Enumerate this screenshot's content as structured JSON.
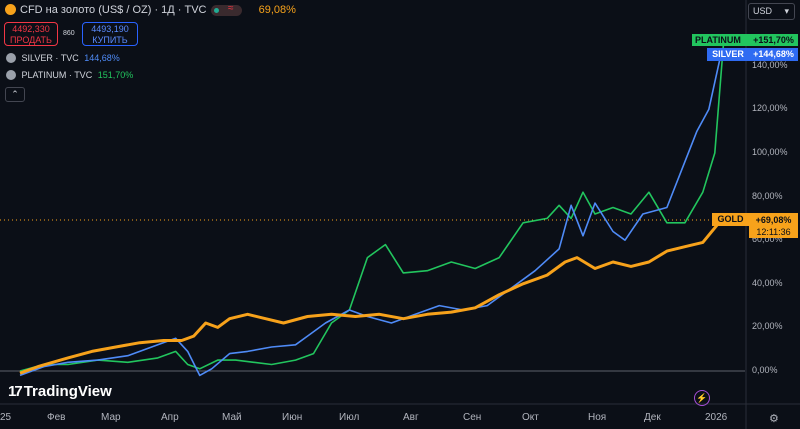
{
  "header": {
    "title": "CFD на золото (US$ / OZ) · 1Д · TVC",
    "change": "69,08%",
    "wave_glyph": "≈"
  },
  "trade": {
    "sell_price": "4492,330",
    "sell_label": "ПРОДАТЬ",
    "spread": "860",
    "buy_price": "4493,190",
    "buy_label": "КУПИТЬ"
  },
  "legend": [
    {
      "name": "SILVER · TVC",
      "value": "144,68%",
      "color": "#4f8bf7"
    },
    {
      "name": "PLATINUM · TVC",
      "value": "151,70%",
      "color": "#22c55e"
    }
  ],
  "collapse_glyph": "⌃",
  "currency": {
    "label": "USD",
    "caret": "▾"
  },
  "branding": {
    "logo_mark": "17",
    "logo_text": "TradingView"
  },
  "icons": {
    "bolt": "⚡",
    "settings": "⚙"
  },
  "badges": {
    "platinum": {
      "label": "PLATINUM",
      "value": "+151,70%"
    },
    "silver": {
      "label": "SILVER",
      "value": "+144,68%"
    },
    "gold": {
      "label": "GOLD",
      "value": "+69,08%",
      "timer": "12:11:36"
    }
  },
  "colors": {
    "background": "#0b0f17",
    "gold": "#f7a21b",
    "silver": "#4f8bf7",
    "platinum": "#22c55e",
    "sell": "#f23645",
    "buy": "#2962ff"
  },
  "chart_data": {
    "type": "line",
    "x_unit": "months",
    "x_tick_labels": [
      "25",
      "Фев",
      "Мар",
      "Апр",
      "Май",
      "Июн",
      "Июл",
      "Авг",
      "Сен",
      "Окт",
      "Ноя",
      "Дек",
      "2026"
    ],
    "y_tick_labels": [
      "0,00%",
      "20,00%",
      "40,00%",
      "60,00%",
      "80,00%",
      "100,00%",
      "120,00%",
      "140,00%"
    ],
    "ylim": [
      -6,
      163
    ],
    "grid": false,
    "series": [
      {
        "name": "GOLD",
        "color": "#f7a21b",
        "x": [
          0.2,
          0.5,
          1.0,
          1.4,
          1.8,
          2.2,
          2.6,
          2.9,
          3.1,
          3.3,
          3.5,
          3.7,
          4.0,
          4.3,
          4.6,
          5.0,
          5.4,
          5.8,
          6.2,
          6.6,
          7.0,
          7.4,
          7.8,
          8.2,
          8.6,
          9.0,
          9.3,
          9.5,
          9.8,
          10.1,
          10.4,
          10.7,
          11.0,
          11.3,
          11.6,
          11.9
        ],
        "y": [
          -1,
          2,
          6,
          9,
          11,
          13,
          14,
          14,
          16,
          22,
          20,
          24,
          26,
          24,
          22,
          25,
          26,
          25,
          26,
          24,
          26,
          27,
          29,
          35,
          40,
          44,
          50,
          52,
          47,
          50,
          48,
          50,
          55,
          57,
          59,
          69
        ]
      },
      {
        "name": "SILVER",
        "color": "#4f8bf7",
        "x": [
          0.2,
          0.6,
          1.0,
          1.5,
          2.0,
          2.5,
          2.8,
          3.0,
          3.2,
          3.4,
          3.7,
          4.0,
          4.4,
          4.8,
          5.0,
          5.3,
          5.7,
          6.0,
          6.4,
          6.8,
          7.2,
          7.6,
          8.0,
          8.4,
          8.8,
          9.2,
          9.4,
          9.6,
          9.8,
          10.1,
          10.3,
          10.6,
          11.0,
          11.3,
          11.5,
          11.7,
          11.9
        ],
        "y": [
          -2,
          2,
          4,
          5,
          7,
          12,
          15,
          9,
          -2,
          1,
          8,
          9,
          11,
          12,
          16,
          22,
          28,
          25,
          22,
          26,
          30,
          28,
          30,
          38,
          46,
          56,
          76,
          62,
          77,
          64,
          60,
          72,
          75,
          96,
          110,
          120,
          145
        ]
      },
      {
        "name": "PLATINUM",
        "color": "#22c55e",
        "x": [
          0.2,
          0.6,
          1.0,
          1.5,
          2.0,
          2.5,
          2.8,
          3.0,
          3.2,
          3.5,
          3.8,
          4.1,
          4.4,
          4.8,
          5.1,
          5.4,
          5.7,
          6.0,
          6.3,
          6.6,
          7.0,
          7.4,
          7.8,
          8.2,
          8.6,
          9.0,
          9.2,
          9.4,
          9.6,
          9.8,
          10.1,
          10.4,
          10.7,
          11.0,
          11.3,
          11.6,
          11.8,
          11.95
        ],
        "y": [
          0,
          3,
          3,
          5,
          4,
          6,
          9,
          3,
          1,
          5,
          5,
          4,
          3,
          5,
          8,
          22,
          28,
          52,
          58,
          45,
          46,
          50,
          47,
          52,
          68,
          70,
          76,
          70,
          82,
          72,
          75,
          72,
          82,
          68,
          68,
          82,
          100,
          152
        ]
      }
    ]
  }
}
